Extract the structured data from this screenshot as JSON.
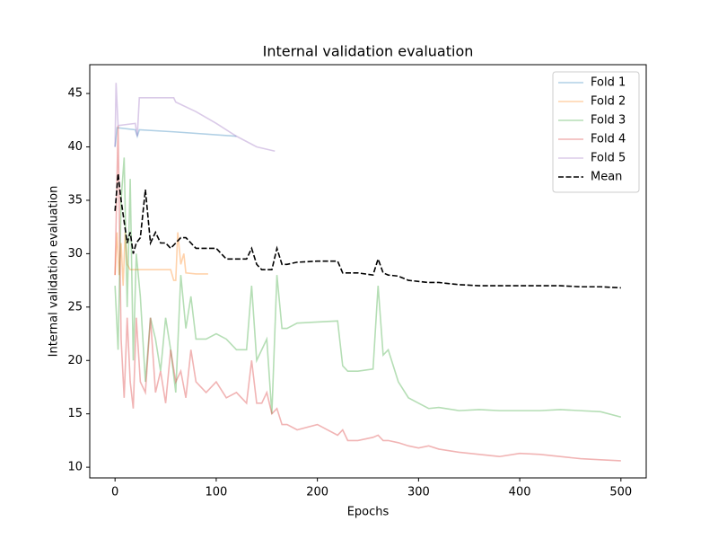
{
  "chart_data": {
    "type": "line",
    "title": "Internal validation evaluation",
    "xlabel": "Epochs",
    "ylabel": "Internal validation evaluation",
    "xlim": [
      -25,
      525
    ],
    "ylim": [
      9,
      47.7
    ],
    "xticks": [
      0,
      100,
      200,
      300,
      400,
      500
    ],
    "yticks": [
      10,
      15,
      20,
      25,
      30,
      35,
      40,
      45
    ],
    "legend": "upper right",
    "grid": false,
    "series": [
      {
        "name": "Fold 1",
        "color": "#1f77b4",
        "alpha": 0.35,
        "linestyle": "solid",
        "x": [
          0,
          2,
          20,
          22,
          24,
          60,
          120
        ],
        "values": [
          40,
          41.8,
          41.6,
          41,
          41.6,
          41.4,
          41
        ]
      },
      {
        "name": "Fold 2",
        "color": "#ff7f0e",
        "alpha": 0.35,
        "linestyle": "solid",
        "x": [
          0,
          2,
          4,
          6,
          8,
          10,
          12,
          15,
          30,
          55,
          58,
          60,
          62,
          65,
          68,
          70,
          80,
          92
        ],
        "values": [
          28,
          32,
          28,
          31,
          27,
          32,
          29,
          28.5,
          28.5,
          28.5,
          27.5,
          27.5,
          32,
          29,
          30,
          28.2,
          28.1,
          28.1
        ]
      },
      {
        "name": "Fold 3",
        "color": "#2ca02c",
        "alpha": 0.35,
        "linestyle": "solid",
        "x": [
          0,
          3,
          6,
          9,
          12,
          15,
          18,
          21,
          25,
          30,
          35,
          40,
          45,
          50,
          55,
          60,
          65,
          70,
          75,
          80,
          90,
          100,
          110,
          120,
          130,
          135,
          140,
          145,
          150,
          155,
          160,
          165,
          170,
          180,
          200,
          220,
          225,
          230,
          240,
          255,
          260,
          265,
          270,
          280,
          290,
          300,
          310,
          320,
          340,
          360,
          380,
          400,
          420,
          440,
          460,
          480,
          500
        ],
        "values": [
          27,
          21,
          35,
          39,
          25,
          37,
          20,
          30,
          26,
          18,
          24,
          22,
          19,
          24,
          21,
          17,
          28,
          23,
          26,
          22,
          22,
          22.5,
          22,
          21,
          21,
          27,
          20,
          21,
          22,
          15,
          28,
          23,
          23,
          23.5,
          23.6,
          23.7,
          19.5,
          19,
          19,
          19.2,
          27,
          20.5,
          21,
          18,
          16.5,
          16,
          15.5,
          15.6,
          15.3,
          15.4,
          15.3,
          15.3,
          15.3,
          15.4,
          15.3,
          15.2,
          14.7
        ]
      },
      {
        "name": "Fold 4",
        "color": "#d62728",
        "alpha": 0.35,
        "linestyle": "solid",
        "x": [
          0,
          3,
          6,
          9,
          12,
          15,
          18,
          21,
          25,
          30,
          35,
          40,
          45,
          50,
          55,
          60,
          65,
          70,
          75,
          80,
          90,
          100,
          110,
          120,
          130,
          135,
          140,
          145,
          150,
          155,
          160,
          165,
          170,
          180,
          200,
          220,
          225,
          230,
          240,
          255,
          260,
          265,
          270,
          280,
          290,
          300,
          310,
          320,
          340,
          360,
          380,
          400,
          420,
          440,
          460,
          480,
          500
        ],
        "values": [
          28,
          42,
          22,
          16.5,
          24,
          18,
          15.5,
          24,
          18,
          17,
          24,
          17,
          19,
          16,
          21,
          18,
          19,
          16.5,
          21,
          18,
          17,
          18,
          16.5,
          17,
          16,
          20,
          16,
          16,
          17,
          15,
          15.5,
          14,
          14,
          13.5,
          14,
          13,
          13.5,
          12.5,
          12.5,
          12.8,
          13,
          12.5,
          12.5,
          12.3,
          12,
          11.8,
          12,
          11.7,
          11.4,
          11.2,
          11,
          11.3,
          11.2,
          11.0,
          10.8,
          10.7,
          10.6
        ]
      },
      {
        "name": "Fold 5",
        "color": "#9467bd",
        "alpha": 0.35,
        "linestyle": "solid",
        "x": [
          0,
          1,
          3,
          20,
          22,
          24,
          58,
          60,
          80,
          100,
          120,
          140,
          158
        ],
        "values": [
          40,
          46,
          42,
          42.2,
          41,
          44.6,
          44.6,
          44.2,
          43.3,
          42.2,
          41,
          40,
          39.6
        ]
      },
      {
        "name": "Mean",
        "color": "#000000",
        "alpha": 1,
        "linestyle": "dashed",
        "x": [
          0,
          3,
          6,
          9,
          12,
          15,
          18,
          21,
          25,
          30,
          35,
          40,
          45,
          50,
          55,
          60,
          65,
          70,
          75,
          80,
          90,
          100,
          110,
          120,
          130,
          135,
          140,
          145,
          150,
          155,
          160,
          165,
          170,
          180,
          200,
          220,
          225,
          230,
          240,
          255,
          260,
          265,
          270,
          280,
          290,
          300,
          310,
          320,
          340,
          360,
          380,
          400,
          420,
          440,
          460,
          480,
          500
        ],
        "values": [
          34,
          37.5,
          35,
          33,
          31,
          32,
          30,
          31,
          31.5,
          36,
          31,
          32,
          31,
          31,
          30.5,
          31,
          31.5,
          31.5,
          31,
          30.5,
          30.5,
          30.5,
          29.5,
          29.5,
          29.5,
          30.5,
          29,
          28.5,
          28.5,
          28.5,
          30.5,
          29,
          29,
          29.2,
          29.3,
          29.3,
          28.2,
          28.2,
          28.2,
          28,
          29.5,
          28.2,
          28,
          27.9,
          27.5,
          27.4,
          27.3,
          27.3,
          27.1,
          27,
          27,
          27,
          27,
          27,
          26.9,
          26.9,
          26.8
        ]
      }
    ]
  }
}
